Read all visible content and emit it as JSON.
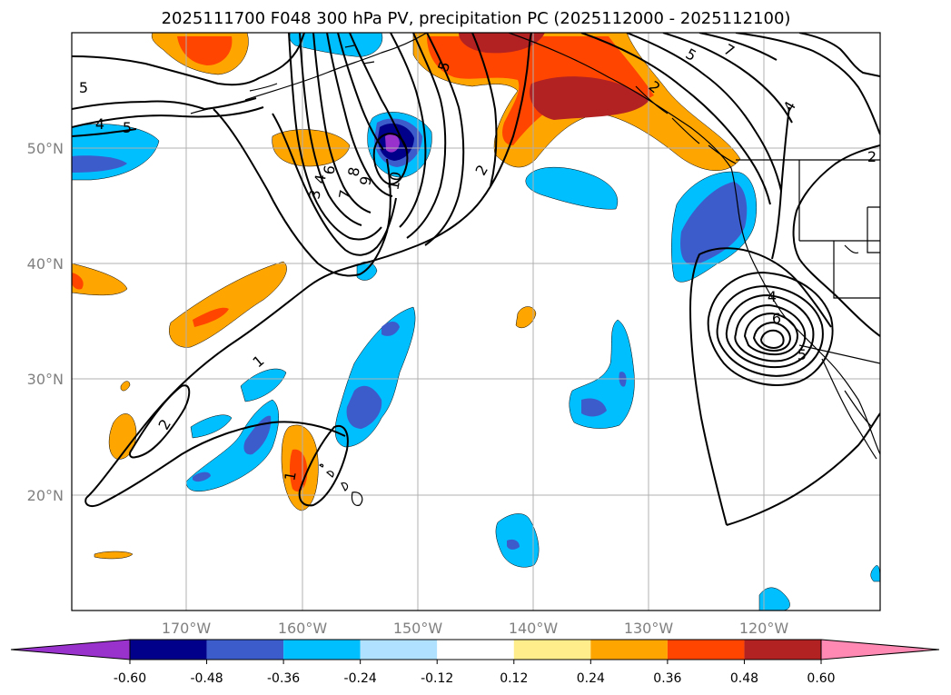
{
  "title": "2025111700 F048 300 hPa PV, precipitation PC (2025112000 - 2025112100)",
  "lon_labels": [
    "170°W",
    "160°W",
    "150°W",
    "140°W",
    "130°W",
    "120°W"
  ],
  "lat_labels": [
    "50°N",
    "40°N",
    "30°N",
    "20°N"
  ],
  "colorbar": {
    "ticks": [
      "-0.60",
      "-0.48",
      "-0.36",
      "-0.24",
      "-0.12",
      "0.12",
      "0.24",
      "0.36",
      "0.48",
      "0.60"
    ],
    "colors": [
      "#9932cc",
      "#00008b",
      "#3c5ccc",
      "#00bfff",
      "#b0e2ff",
      "#ffffff",
      "#ffec8b",
      "#ffa500",
      "#ff4500",
      "#b22222",
      "#ff89b3"
    ]
  },
  "contour_labels": [
    "5",
    "4",
    "5",
    "6",
    "7",
    "8",
    "9",
    "10",
    "3",
    "4",
    "5",
    "2",
    "1",
    "2",
    "1",
    "5",
    "7",
    "2",
    "2",
    "4",
    "6",
    "4",
    "5"
  ],
  "chart_data": {
    "type": "map",
    "projection": "polar-stereographic",
    "fields": {
      "shading": "precipitation PC",
      "contours": "300 hPa PV"
    },
    "lon_ticks": [
      -170,
      -160,
      -150,
      -140,
      -130,
      -120
    ],
    "lat_ticks": [
      50,
      40,
      30,
      20
    ],
    "colorbar_levels": [
      -0.6,
      -0.48,
      -0.36,
      -0.24,
      -0.12,
      0.12,
      0.24,
      0.36,
      0.48,
      0.6
    ]
  }
}
